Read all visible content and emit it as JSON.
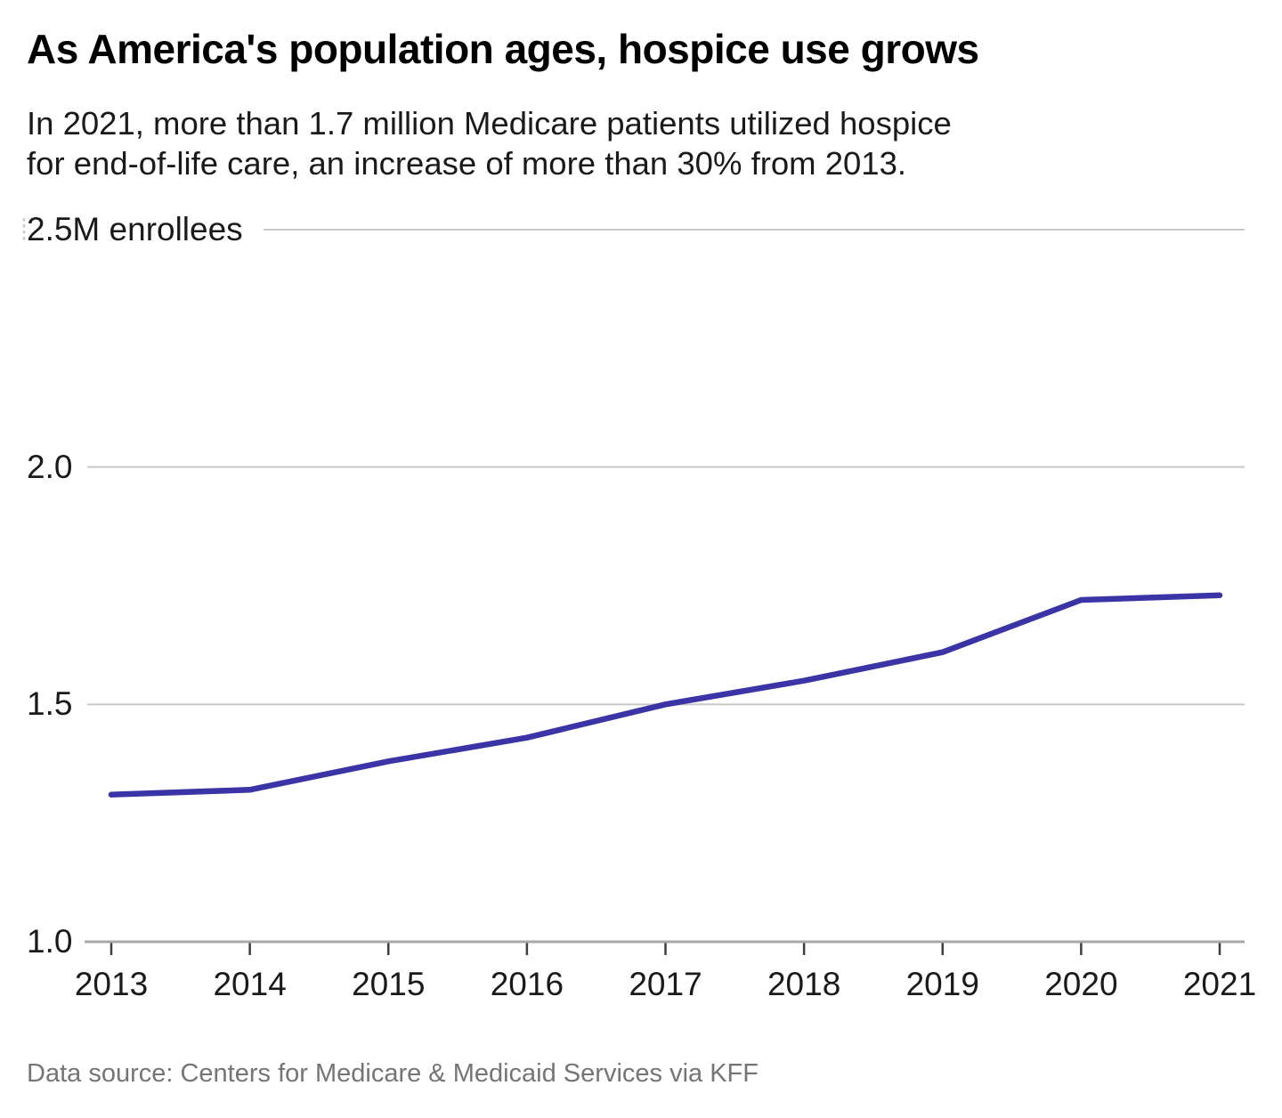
{
  "page": {
    "title": "As America's population ages, hospice use grows",
    "subtitle_line1": "In 2021, more than 1.7 million Medicare patients utilized hospice",
    "subtitle_line2": "for end-of-life care, an increase of more than 30% from 2013.",
    "footer": "Data source: Centers for Medicare & Medicaid Services via KFF"
  },
  "colors": {
    "background": "#ffffff",
    "title": "#000000",
    "text": "#1a1a1a",
    "footer_text": "#757575",
    "line": "#3a34a6",
    "gridline": "#c8c8c8",
    "baseline": "#a8a8a8",
    "axis_tick": "#3f3f3f"
  },
  "chart_data": {
    "type": "line",
    "title": "As America's population ages, hospice use grows",
    "subtitle_lines": [
      "In 2021, more than 1.7 million Medicare patients utilized hospice",
      "for end-of-life care, an increase of more than 30% from 2013."
    ],
    "source": "Data source: Centers for Medicare & Medicaid Services via KFF",
    "categories": [
      2013,
      2014,
      2015,
      2016,
      2017,
      2018,
      2019,
      2020,
      2021
    ],
    "values": [
      1.31,
      1.32,
      1.38,
      1.43,
      1.5,
      1.55,
      1.61,
      1.72,
      1.73
    ],
    "xlabel": "",
    "ylabel": "",
    "xlim": [
      2013,
      2021
    ],
    "ylim": [
      1.0,
      2.5
    ],
    "y_ticks": [
      {
        "value": 2.5,
        "label": "2.5M enrollees"
      },
      {
        "value": 2.0,
        "label": "2.0"
      },
      {
        "value": 1.5,
        "label": "1.5"
      },
      {
        "value": 1.0,
        "label": "1.0"
      }
    ],
    "grid": "horizontal",
    "legend": "none",
    "line_color": "#3a34a6"
  }
}
